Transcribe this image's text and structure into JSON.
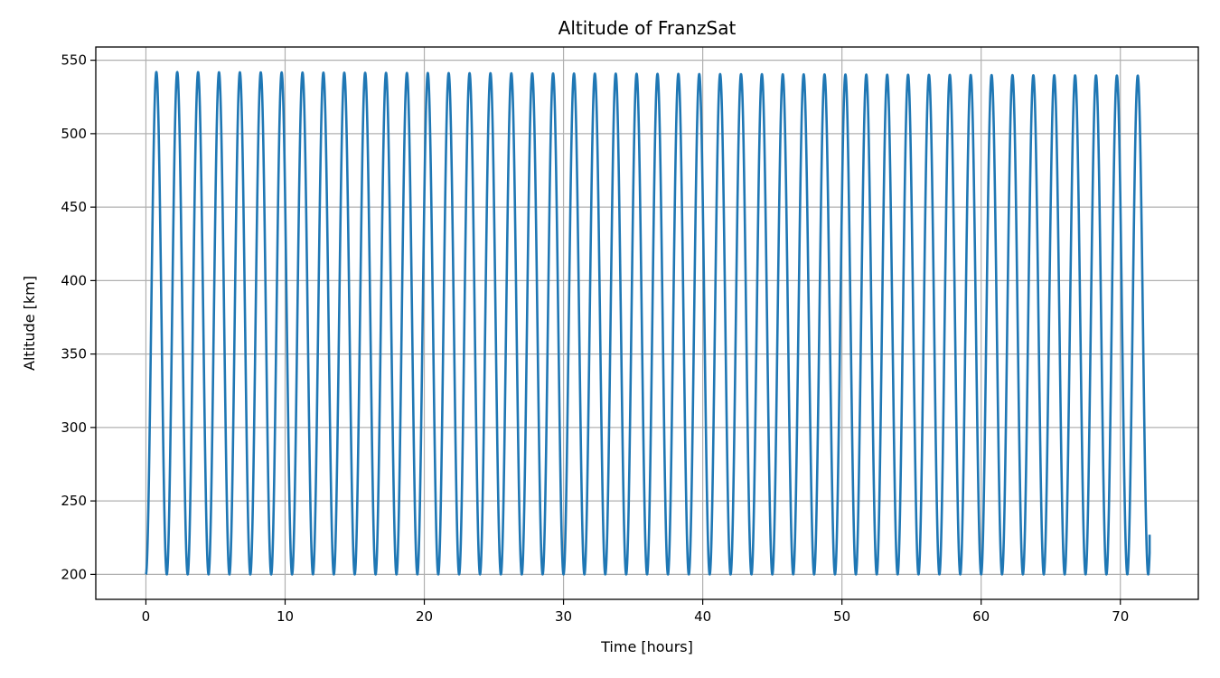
{
  "chart_data": {
    "type": "line",
    "title": "Altitude of FranzSat",
    "xlabel": "Time [hours]",
    "ylabel": "Altitude [km]",
    "xlim": [
      -3.6,
      75.6
    ],
    "ylim": [
      183,
      559
    ],
    "xticks": [
      0,
      10,
      20,
      30,
      40,
      50,
      60,
      70
    ],
    "yticks": [
      200,
      250,
      300,
      350,
      400,
      450,
      500,
      550
    ],
    "grid": true,
    "color": "#1f77b4",
    "series": [
      {
        "orbit_period_hours": 1.5,
        "t_start": 0,
        "t_end": 72.1,
        "min_altitude_km": 200,
        "max_altitude_start_km": 542,
        "max_altitude_end_km": 539.5,
        "end_value_km": 227
      }
    ]
  }
}
